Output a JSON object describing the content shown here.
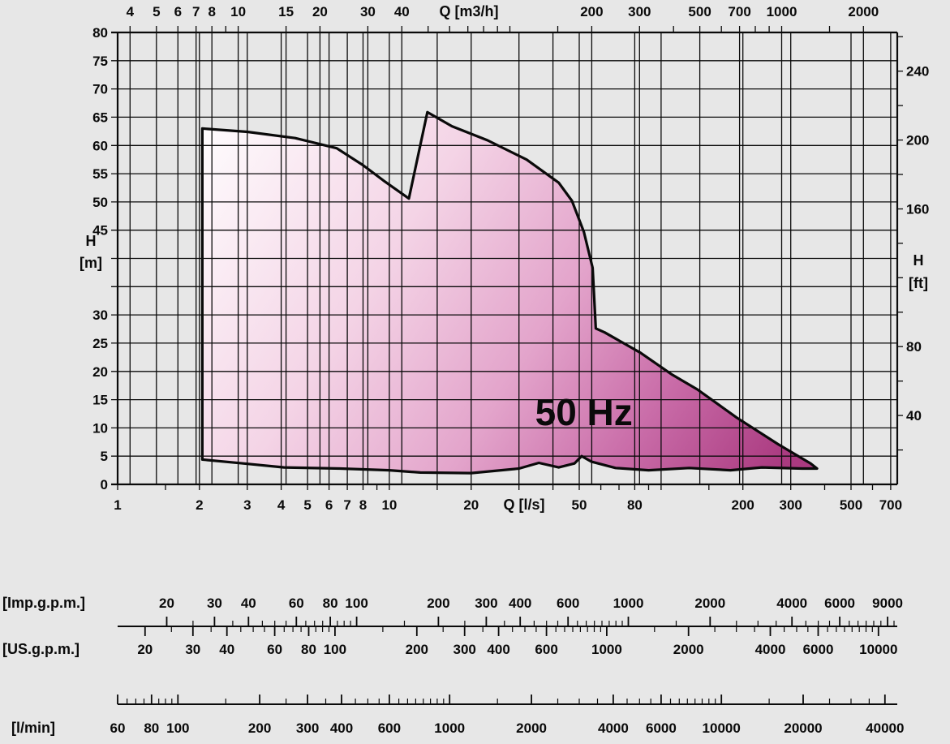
{
  "page": {
    "background": "#e7e7e7"
  },
  "chart_data": {
    "type": "area",
    "label": "50 Hz",
    "label_position": {
      "q_ls": 52,
      "h_m": 12.8
    },
    "x_axis": {
      "scale": "log",
      "min_ls": 1,
      "max_ls": 740,
      "bottom": {
        "title": "Q [l/s]",
        "unit": "l/s",
        "tick_labels": [
          1,
          2,
          3,
          4,
          5,
          6,
          7,
          8,
          10,
          20,
          50,
          80,
          200,
          300,
          500,
          700
        ]
      },
      "top": {
        "title": "Q [m3/h]",
        "unit": "m3/h",
        "ls_per_unit": 0.277778,
        "tick_labels": [
          4,
          5,
          6,
          7,
          8,
          10,
          15,
          20,
          30,
          40,
          200,
          300,
          500,
          700,
          1000,
          2000
        ]
      },
      "extra_gridlines_ls": [
        15,
        30,
        40,
        100
      ]
    },
    "y_axis": {
      "scale": "linear",
      "min_m": 0,
      "max_m": 80,
      "grid_step_m": 5,
      "left": {
        "title_lines": [
          "H",
          "[m]"
        ],
        "unit": "m",
        "tick_labels": [
          80,
          75,
          70,
          65,
          60,
          55,
          50,
          45,
          30,
          25,
          20,
          15,
          10,
          5,
          0
        ]
      },
      "right": {
        "title_lines": [
          "H",
          "[ft]"
        ],
        "unit": "ft",
        "m_per_ft": 0.3048,
        "tick_labels": [
          240,
          200,
          160,
          80,
          40
        ],
        "minor_tick_step_ft": 20,
        "minor_tick_max_ft": 260
      }
    },
    "envelope_q_h": [
      [
        2.05,
        4.4
      ],
      [
        2.05,
        63.0
      ],
      [
        3.0,
        62.4
      ],
      [
        4.5,
        61.3
      ],
      [
        6.4,
        59.5
      ],
      [
        8.0,
        56.5
      ],
      [
        9.5,
        53.8
      ],
      [
        11.8,
        50.6
      ],
      [
        13.8,
        65.9
      ],
      [
        17.0,
        63.4
      ],
      [
        23.0,
        60.9
      ],
      [
        32.0,
        57.5
      ],
      [
        42.0,
        53.4
      ],
      [
        47.0,
        50.2
      ],
      [
        52.0,
        44.7
      ],
      [
        56.0,
        38.3
      ],
      [
        57.5,
        27.6
      ],
      [
        62.0,
        26.9
      ],
      [
        84.0,
        23.3
      ],
      [
        110.0,
        19.4
      ],
      [
        136.0,
        16.8
      ],
      [
        190.0,
        11.8
      ],
      [
        270.0,
        7.1
      ],
      [
        355.0,
        3.7
      ],
      [
        375.0,
        2.8
      ],
      [
        330.0,
        2.8
      ],
      [
        235.0,
        3.0
      ],
      [
        180.0,
        2.5
      ],
      [
        127.0,
        2.9
      ],
      [
        90.0,
        2.5
      ],
      [
        68.0,
        2.9
      ],
      [
        55.5,
        4.0
      ],
      [
        51.0,
        5.0
      ],
      [
        48.0,
        3.7
      ],
      [
        42.0,
        3.0
      ],
      [
        35.5,
        3.8
      ],
      [
        30.0,
        2.8
      ],
      [
        20.0,
        2.0
      ],
      [
        13.0,
        2.1
      ],
      [
        10.0,
        2.5
      ],
      [
        6.6,
        2.8
      ],
      [
        4.1,
        3.0
      ],
      [
        2.9,
        3.7
      ]
    ],
    "lower_scales": [
      {
        "name": "[Imp.g.p.m.]",
        "ls_per_unit": 0.0757682,
        "tick_labels": [
          20,
          30,
          40,
          60,
          80,
          100,
          200,
          300,
          400,
          600,
          1000,
          2000,
          4000,
          6000,
          9000
        ],
        "tick_side": "up",
        "row": 0,
        "min_value": 20,
        "max_value": 9500
      },
      {
        "name": "[US.g.p.m.]",
        "ls_per_unit": 0.0630902,
        "tick_labels": [
          20,
          30,
          40,
          60,
          80,
          100,
          200,
          300,
          400,
          600,
          1000,
          2000,
          4000,
          6000,
          10000
        ],
        "tick_side": "down",
        "row": 0,
        "min_value": 20,
        "max_value": 10500
      },
      {
        "name": "[l/min]",
        "ls_per_unit": 0.0166667,
        "tick_labels": [
          60,
          80,
          100,
          200,
          300,
          400,
          600,
          1000,
          2000,
          4000,
          6000,
          10000,
          20000,
          40000
        ],
        "tick_side": "up",
        "row": 1,
        "min_value": 60,
        "max_value": 42000
      }
    ],
    "colors": {
      "background": "#e7e7e7",
      "grid": "#0a0a0a",
      "outline": "#0a0a0a",
      "gradient_stops": [
        "#ffffff",
        "#f4d4e6",
        "#e3a4cb",
        "#c96ca8",
        "#aa3a80"
      ]
    }
  }
}
